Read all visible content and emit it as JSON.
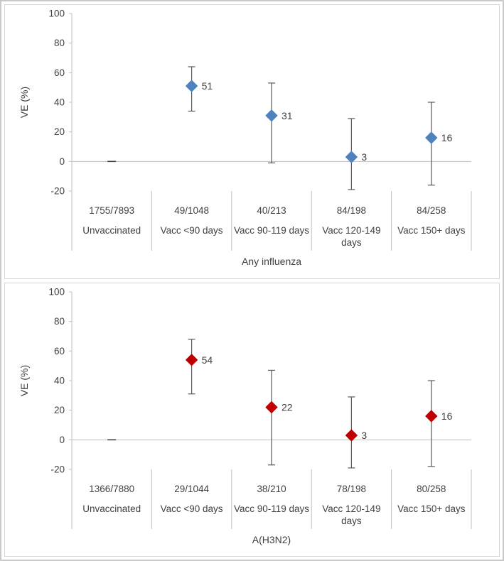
{
  "figure": {
    "background": "#ffffff",
    "outer_border_color": "#c9c9c9",
    "panel_border_color": "#d6d6d6",
    "axis_color": "#bfbfbf",
    "text_color": "#404040",
    "error_bar_color": "#595959"
  },
  "chart_data": [
    {
      "type": "scatter",
      "title": "Any influenza",
      "ylabel": "VE (%)",
      "ylim": [
        -20,
        100
      ],
      "yticks": [
        100,
        80,
        60,
        40,
        20,
        0,
        -20
      ],
      "marker": "diamond",
      "marker_color": "#4d82be",
      "zero_line": true,
      "legend": "none",
      "points": [
        {
          "count": "1755/7893",
          "label": "Unvaccinated",
          "value": 0,
          "ci_low": null,
          "ci_high": null,
          "reference": true,
          "show_value_label": false
        },
        {
          "count": "49/1048",
          "label": "Vacc <90 days",
          "value": 51,
          "ci_low": 34,
          "ci_high": 64,
          "reference": false,
          "show_value_label": true
        },
        {
          "count": "40/213",
          "label": "Vacc 90-119 days",
          "value": 31,
          "ci_low": -1,
          "ci_high": 53,
          "reference": false,
          "show_value_label": true
        },
        {
          "count": "84/198",
          "label": "Vacc 120-149 days",
          "value": 3,
          "ci_low": -19,
          "ci_high": 29,
          "reference": false,
          "show_value_label": true
        },
        {
          "count": "84/258",
          "label": "Vacc 150+ days",
          "value": 16,
          "ci_low": -16,
          "ci_high": 40,
          "reference": false,
          "show_value_label": true
        }
      ]
    },
    {
      "type": "scatter",
      "title": "A(H3N2)",
      "ylabel": "VE (%)",
      "ylim": [
        -20,
        100
      ],
      "yticks": [
        100,
        80,
        60,
        40,
        20,
        0,
        -20
      ],
      "marker": "diamond",
      "marker_color": "#c00000",
      "zero_line": true,
      "legend": "none",
      "points": [
        {
          "count": "1366/7880",
          "label": "Unvaccinated",
          "value": 0,
          "ci_low": null,
          "ci_high": null,
          "reference": true,
          "show_value_label": false
        },
        {
          "count": "29/1044",
          "label": "Vacc <90 days",
          "value": 54,
          "ci_low": 31,
          "ci_high": 68,
          "reference": false,
          "show_value_label": true
        },
        {
          "count": "38/210",
          "label": "Vacc 90-119 days",
          "value": 22,
          "ci_low": -17,
          "ci_high": 47,
          "reference": false,
          "show_value_label": true
        },
        {
          "count": "78/198",
          "label": "Vacc 120-149 days",
          "value": 3,
          "ci_low": -19,
          "ci_high": 29,
          "reference": false,
          "show_value_label": true
        },
        {
          "count": "80/258",
          "label": "Vacc 150+ days",
          "value": 16,
          "ci_low": -18,
          "ci_high": 40,
          "reference": false,
          "show_value_label": true
        }
      ]
    }
  ]
}
